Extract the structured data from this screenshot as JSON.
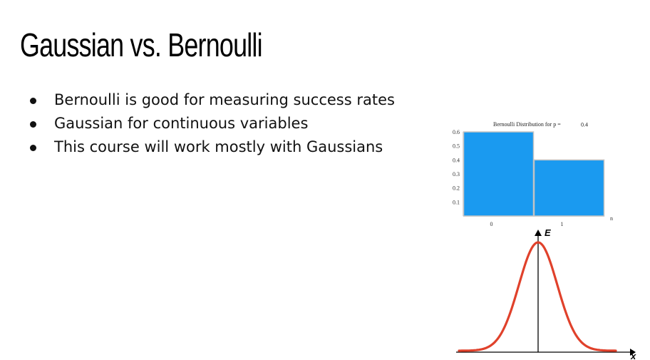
{
  "slide": {
    "title": "Gaussian vs. Bernoulli",
    "bullets": [
      "Bernoulli is good for measuring success rates",
      "Gaussian for continuous variables",
      "This course will work mostly with Gaussians"
    ]
  },
  "chart_data": [
    {
      "type": "bar",
      "title": "Bernoulli Distribution for p =",
      "p_value": "0.4",
      "categories": [
        "0",
        "1"
      ],
      "values": [
        0.6,
        0.4
      ],
      "xlabel": "n",
      "ylabel": "",
      "ylim": [
        0,
        0.6
      ],
      "yticks": [
        "0.1",
        "0.2",
        "0.3",
        "0.4",
        "0.5",
        "0.6"
      ],
      "grid": false,
      "bar_color": "#1a9af0"
    },
    {
      "type": "line",
      "curve": "gaussian",
      "xlabel": "x",
      "ylabel": "E",
      "line_color": "#e0412b",
      "axis_color": "#000000"
    }
  ]
}
